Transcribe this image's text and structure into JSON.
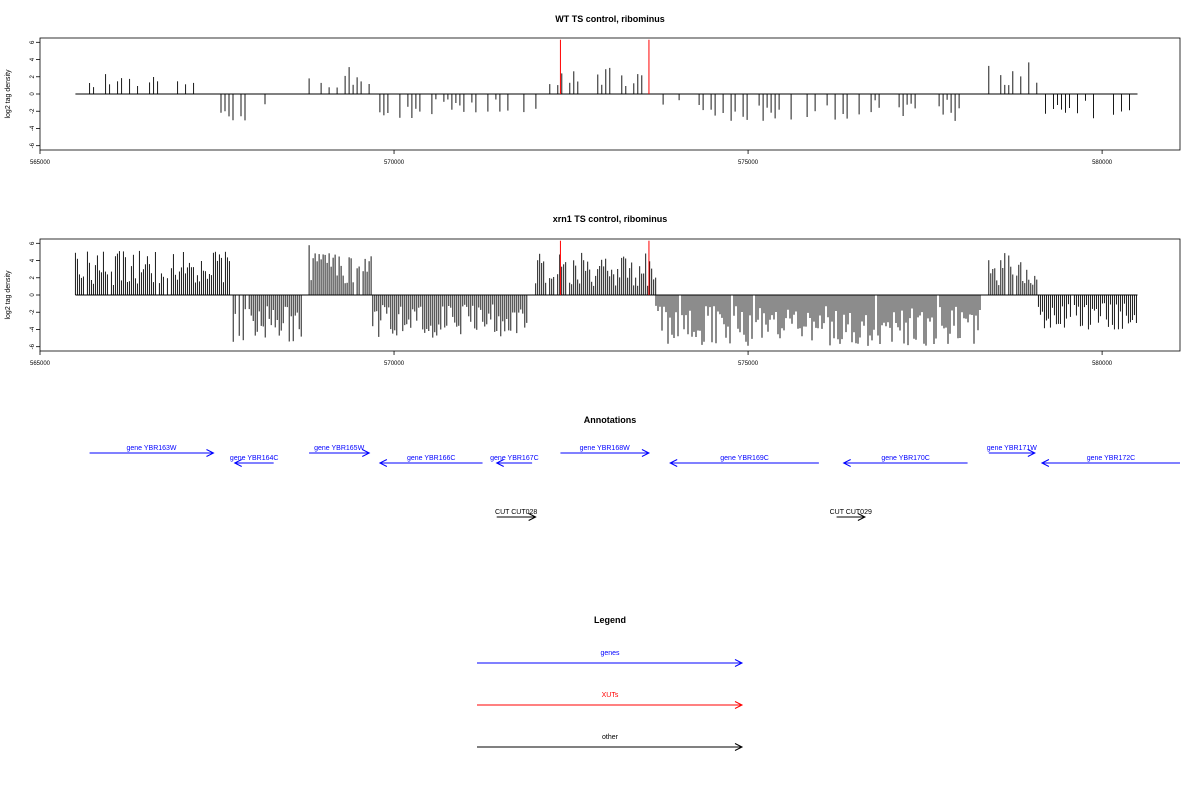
{
  "chart_data": [
    {
      "type": "bar",
      "title": "WT TS control, ribominus",
      "ylabel": "log2 tag density",
      "xlim": [
        565000,
        581100
      ],
      "ylim": [
        -6.5,
        6.5
      ],
      "x_ticks": [
        565000,
        570000,
        575000,
        580000
      ],
      "y_ticks": [
        -6,
        -4,
        -2,
        0,
        2,
        4,
        6
      ],
      "grid": false,
      "signal": {
        "forward_segments": [
          {
            "start": 565700,
            "end": 567400,
            "level": 1.8
          },
          {
            "start": 568800,
            "end": 569700,
            "level": 1.9
          },
          {
            "start": 572200,
            "end": 573700,
            "level": 1.9
          },
          {
            "start": 578400,
            "end": 579100,
            "level": 2.4
          }
        ],
        "reverse_segments": [
          {
            "start": 567500,
            "end": 568400,
            "level": 2.6
          },
          {
            "start": 569800,
            "end": 572100,
            "level": 1.7
          },
          {
            "start": 573800,
            "end": 578200,
            "level": 1.9
          },
          {
            "start": 579200,
            "end": 580500,
            "level": 1.8
          }
        ],
        "baseline": [
          565500,
          580500
        ]
      },
      "markers": [
        {
          "x": 572350,
          "color": "#ff0000"
        },
        {
          "x": 573600,
          "color": "#ff0000"
        }
      ]
    },
    {
      "type": "bar",
      "title": "xrn1 TS control, ribominus",
      "ylabel": "log2 tag density",
      "xlim": [
        565000,
        581100
      ],
      "ylim": [
        -6.5,
        6.5
      ],
      "x_ticks": [
        565000,
        570000,
        575000,
        580000
      ],
      "y_ticks": [
        -6,
        -4,
        -2,
        0,
        2,
        4,
        6
      ],
      "grid": false,
      "signal": {
        "forward_segments": [
          {
            "start": 565500,
            "end": 567700,
            "level": 3.2
          },
          {
            "start": 568800,
            "end": 569700,
            "level": 3.8
          },
          {
            "start": 572000,
            "end": 573700,
            "level": 3.0
          },
          {
            "start": 578400,
            "end": 579100,
            "level": 3.0
          }
        ],
        "reverse_segments": [
          {
            "start": 567700,
            "end": 568700,
            "level": 3.4
          },
          {
            "start": 569700,
            "end": 571900,
            "level": 3.0
          },
          {
            "start": 573700,
            "end": 578300,
            "level": 3.6
          },
          {
            "start": 579100,
            "end": 580500,
            "level": 2.6
          }
        ],
        "baseline": [
          565500,
          580500
        ]
      },
      "markers": [
        {
          "x": 572350,
          "color": "#ff0000"
        },
        {
          "x": 573600,
          "color": "#ff0000"
        }
      ]
    }
  ],
  "annotations": {
    "title": "Annotations",
    "features": [
      {
        "label": "gene YBR163W",
        "start": 565700,
        "end": 567450,
        "strand": "+",
        "row": 0,
        "color": "#0000ff"
      },
      {
        "label": "gene YBR164C",
        "start": 567750,
        "end": 568300,
        "strand": "-",
        "row": 1,
        "color": "#0000ff"
      },
      {
        "label": "gene YBR165W",
        "start": 568800,
        "end": 569650,
        "strand": "+",
        "row": 0,
        "color": "#0000ff"
      },
      {
        "label": "gene YBR166C",
        "start": 569800,
        "end": 571250,
        "strand": "-",
        "row": 1,
        "color": "#0000ff"
      },
      {
        "label": "gene YBR167C",
        "start": 571450,
        "end": 571950,
        "strand": "-",
        "row": 1,
        "color": "#0000ff"
      },
      {
        "label": "gene YBR168W",
        "start": 572350,
        "end": 573600,
        "strand": "+",
        "row": 0,
        "color": "#0000ff"
      },
      {
        "label": "gene YBR169C",
        "start": 573900,
        "end": 576000,
        "strand": "-",
        "row": 1,
        "color": "#0000ff"
      },
      {
        "label": "gene YBR170C",
        "start": 576350,
        "end": 578100,
        "strand": "-",
        "row": 1,
        "color": "#0000ff"
      },
      {
        "label": "gene YBR171W",
        "start": 578400,
        "end": 579050,
        "strand": "+",
        "row": 0,
        "color": "#0000ff"
      },
      {
        "label": "gene YBR172C",
        "start": 579150,
        "end": 581100,
        "strand": "-",
        "row": 1,
        "color": "#0000ff"
      },
      {
        "label": "CUT CUT028",
        "start": 571450,
        "end": 572000,
        "strand": "+",
        "row": 2,
        "color": "#000000"
      },
      {
        "label": "CUT CUT029",
        "start": 576250,
        "end": 576650,
        "strand": "+",
        "row": 2,
        "color": "#000000"
      }
    ]
  },
  "legend": {
    "title": "Legend",
    "entries": [
      {
        "label": "genes",
        "color": "#0000ff"
      },
      {
        "label": "XUTs",
        "color": "#ff0000"
      },
      {
        "label": "other",
        "color": "#000000"
      }
    ]
  }
}
